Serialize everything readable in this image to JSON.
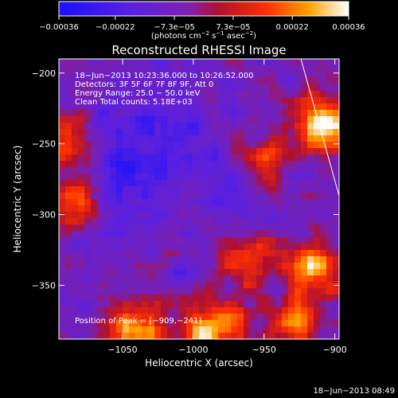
{
  "chart_data": {
    "type": "heatmap",
    "title": "Reconstructed RHESSI Image",
    "xlabel": "Heliocentric X (arcsec)",
    "ylabel": "Heliocentric Y (arcsec)",
    "xlim": [
      -1095,
      -897
    ],
    "ylim": [
      -388,
      -190
    ],
    "x_ticks": [
      -1050,
      -1000,
      -950,
      -900
    ],
    "x_tick_labels": [
      "−1050",
      "−1000",
      "−950",
      "−900"
    ],
    "y_ticks": [
      -200,
      -250,
      -300,
      -350
    ],
    "y_tick_labels": [
      "−200",
      "−250",
      "−300",
      "−350"
    ],
    "colorbar": {
      "min": -0.00036,
      "max": 0.00036,
      "ticks": [
        -0.00036,
        -0.00022,
        -7.3e-05,
        7.3e-05,
        0.00022,
        0.00036
      ],
      "tick_labels": [
        "−0.00036",
        "−0.00022",
        "−7.3e−05",
        "7.3e−05",
        "0.00022",
        "0.00036"
      ],
      "unit_main": "(photons cm",
      "unit_exp1": "−2",
      "unit_mid": " s",
      "unit_exp2": "−1",
      "unit_tail": " asec",
      "unit_exp3": "−2",
      "unit_close": ")"
    },
    "annotations": [
      "18−Jun−2013 10:23:36.000 to 10:26:52.000",
      "Detectors: 3F 5F 6F 7F 8F 9F, Att 0",
      "Energy Range: 25.0 − 50.0 keV",
      "Clean    Total counts: 5.18E+03"
    ],
    "peak_label": "Position of Peak = [−909,−241]",
    "peak": [
      -909,
      -241
    ],
    "bright_sources": [
      {
        "x": -907,
        "y": -237,
        "level": 1.0
      },
      {
        "x": -985,
        "y": -380,
        "level": 0.9
      },
      {
        "x": -1040,
        "y": -383,
        "level": 0.8
      },
      {
        "x": -1082,
        "y": -290,
        "level": 0.7
      },
      {
        "x": -915,
        "y": -338,
        "level": 0.75
      },
      {
        "x": -1092,
        "y": -245,
        "level": 0.55
      },
      {
        "x": -930,
        "y": -378,
        "level": 0.6
      },
      {
        "x": -965,
        "y": -330,
        "level": 0.5
      },
      {
        "x": -950,
        "y": -265,
        "level": 0.45
      }
    ],
    "dim_regions": [
      {
        "x": -1050,
        "y": -278,
        "level": -0.9
      },
      {
        "x": -1005,
        "y": -250,
        "level": -0.5
      },
      {
        "x": -975,
        "y": -290,
        "level": -0.5
      },
      {
        "x": -1040,
        "y": -228,
        "level": -0.4
      }
    ]
  },
  "timestamp": "18−Jun−2013 08:49"
}
